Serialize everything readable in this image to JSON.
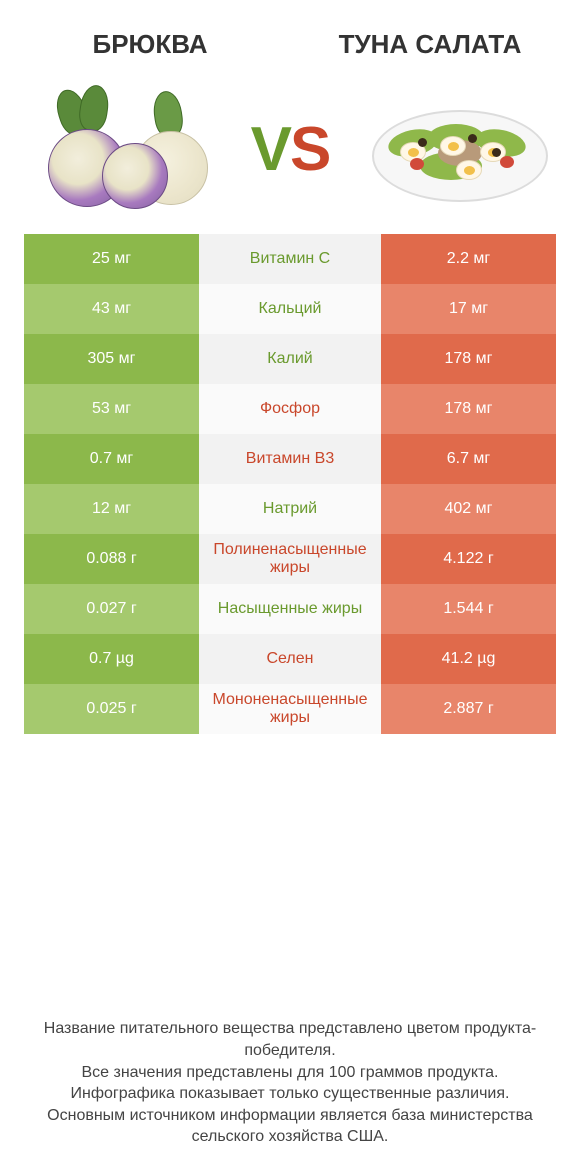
{
  "colors": {
    "left_even": "#8cb84b",
    "left_odd": "#a5c96e",
    "right_even": "#e06a4b",
    "right_odd": "#e8856a",
    "mid_even": "#f2f2f2",
    "mid_odd": "#fafafa",
    "left_accent": "#6a9a2e",
    "right_accent": "#c9472b",
    "vs_left": "#6a9a2e",
    "vs_right": "#c9472b"
  },
  "left": {
    "title": "БРЮКВА"
  },
  "right": {
    "title": "ТУНА САЛАТА"
  },
  "vs": {
    "v": "V",
    "s": "S"
  },
  "rows": [
    {
      "left": "25 мг",
      "mid": "Витамин C",
      "right": "2.2 мг",
      "winner": "left"
    },
    {
      "left": "43 мг",
      "mid": "Кальций",
      "right": "17 мг",
      "winner": "left"
    },
    {
      "left": "305 мг",
      "mid": "Калий",
      "right": "178 мг",
      "winner": "left"
    },
    {
      "left": "53 мг",
      "mid": "Фосфор",
      "right": "178 мг",
      "winner": "right"
    },
    {
      "left": "0.7 мг",
      "mid": "Витамин B3",
      "right": "6.7 мг",
      "winner": "right"
    },
    {
      "left": "12 мг",
      "mid": "Натрий",
      "right": "402 мг",
      "winner": "left"
    },
    {
      "left": "0.088 г",
      "mid": "Полиненасыщенные жиры",
      "right": "4.122 г",
      "winner": "right"
    },
    {
      "left": "0.027 г",
      "mid": "Насыщенные жиры",
      "right": "1.544 г",
      "winner": "left"
    },
    {
      "left": "0.7 µg",
      "mid": "Селен",
      "right": "41.2 µg",
      "winner": "right"
    },
    {
      "left": "0.025 г",
      "mid": "Мононенасыщенные жиры",
      "right": "2.887 г",
      "winner": "right"
    }
  ],
  "footnotes": [
    "Название питательного вещества представлено цветом продукта-победителя.",
    "Все значения представлены для 100 граммов продукта.",
    "Инфографика показывает только существенные различия.",
    "Основным источником информации является база министерства сельского хозяйства США."
  ]
}
